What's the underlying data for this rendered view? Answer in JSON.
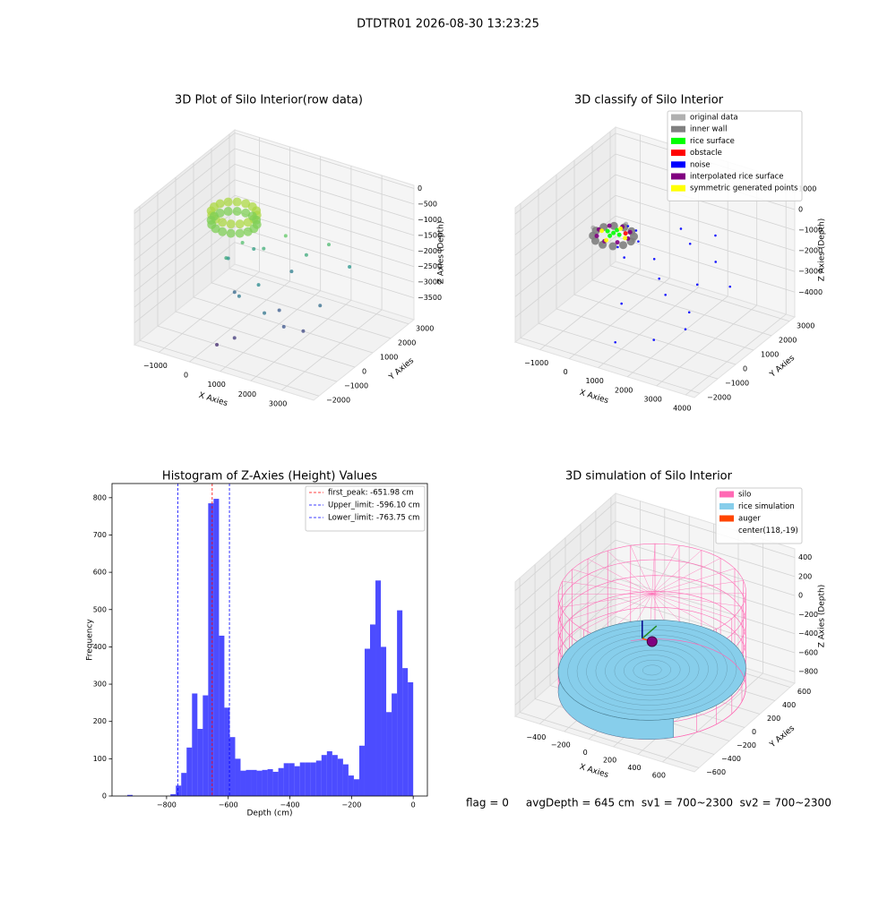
{
  "title": "DTDTR01 2026-08-30 13:23:25",
  "footer": "flag = 0     avgDepth = 645 cm  sv1 = 700~2300  sv2 = 700~2300",
  "chart_data": [
    {
      "type": "scatter3d",
      "title": "3D Plot of Silo Interior(row data)",
      "xlabel": "X Axies",
      "ylabel": "Y Axies",
      "zlabel": "Z Axies (Depth)",
      "colormap": "viridis",
      "xlim": [
        -1800,
        4050
      ],
      "ylim": [
        -2300,
        3300
      ],
      "zlim": [
        -4200,
        100
      ],
      "xticks": [
        {
          "value": -1000,
          "label": "−1000"
        },
        0,
        1000,
        2000,
        3000
      ],
      "yticks": [
        {
          "value": -2000,
          "label": "−2000"
        },
        {
          "value": -1000,
          "label": "−1000"
        },
        0,
        1000,
        2000,
        3000
      ],
      "zticks": [
        0,
        {
          "value": -500,
          "label": "−500"
        },
        {
          "value": -1000,
          "label": "−1000"
        },
        {
          "value": -1500,
          "label": "−1500"
        },
        {
          "value": -2000,
          "label": "−2000"
        },
        {
          "value": -2500,
          "label": "−2500"
        },
        {
          "value": -3000,
          "label": "−3000"
        },
        {
          "value": -3500,
          "label": "−3500"
        }
      ],
      "x": [
        768,
        719,
        578,
        367,
        118,
        -131,
        -342,
        -483,
        -532,
        -483,
        -342,
        -131,
        118,
        367,
        578,
        719,
        768,
        719,
        578,
        367,
        118,
        -131,
        -342,
        -483,
        -532,
        -483,
        -342,
        -131,
        118,
        367,
        578,
        719,
        500,
        900,
        1500,
        2000,
        2500,
        3000,
        1200,
        800,
        300,
        1800,
        2200,
        2600,
        1000,
        600,
        2800,
        1400,
        400,
        -200,
        200,
        1700
      ],
      "y": [
        -19,
        230,
        441,
        582,
        631,
        582,
        441,
        230,
        -19,
        -268,
        -479,
        -620,
        -669,
        -620,
        -479,
        -268,
        -19,
        230,
        441,
        582,
        631,
        582,
        441,
        230,
        -19,
        -268,
        -479,
        -620,
        -669,
        -620,
        -479,
        -268,
        -200,
        300,
        500,
        800,
        1200,
        1500,
        -500,
        -900,
        -300,
        -1200,
        -800,
        -400,
        -1500,
        -1800,
        200,
        1000,
        600,
        200,
        -600,
        -200
      ],
      "z": [
        -450,
        -450,
        -450,
        -450,
        -450,
        -450,
        -450,
        -450,
        -450,
        -450,
        -450,
        -450,
        -450,
        -450,
        -450,
        -450,
        -750,
        -750,
        -750,
        -750,
        -750,
        -750,
        -750,
        -750,
        -750,
        -750,
        -750,
        -750,
        -750,
        -750,
        -750,
        -750,
        -1200,
        -1500,
        -1000,
        -1600,
        -1300,
        -2000,
        -2200,
        -2500,
        -2800,
        -2600,
        -3100,
        -3300,
        -3500,
        -3700,
        -2700,
        -2400,
        -1800,
        -2100,
        -1600,
        -3000
      ]
    },
    {
      "type": "scatter3d",
      "title": "3D classify of Silo Interior",
      "xlabel": "X Axies",
      "ylabel": "Y Axies",
      "zlabel": "Z Axies (Depth)",
      "legend": "upper right",
      "xlim": [
        -1850,
        4300
      ],
      "ylim": [
        -2300,
        3300
      ],
      "zlim": [
        -5200,
        1300
      ],
      "xticks": [
        {
          "value": -1000,
          "label": "−1000"
        },
        0,
        1000,
        2000,
        3000,
        4000
      ],
      "yticks": [
        {
          "value": -2000,
          "label": "−2000"
        },
        {
          "value": -1000,
          "label": "−1000"
        },
        0,
        1000,
        2000,
        3000
      ],
      "zticks": [
        1000,
        0,
        {
          "value": -1000,
          "label": "−1000"
        },
        {
          "value": -2000,
          "label": "−2000"
        },
        {
          "value": -3000,
          "label": "−3000"
        },
        {
          "value": -4000,
          "label": "−4000"
        }
      ],
      "series": [
        {
          "name": "original data",
          "color": "#b0b0b0",
          "x": [
            818,
            118,
            -582,
            118
          ],
          "y": [
            -19,
            681,
            -19,
            -719
          ],
          "z": [
            -700,
            -700,
            -700,
            -700
          ]
        },
        {
          "name": "inner wall",
          "color": "#808080",
          "x": [
            718,
            638,
            418,
            118,
            -182,
            -402,
            -482,
            -402,
            -182,
            118,
            418,
            638
          ],
          "y": [
            -19,
            281,
            501,
            581,
            501,
            281,
            -19,
            -319,
            -539,
            -619,
            -539,
            -319
          ],
          "z": [
            -800,
            -800,
            -800,
            -800,
            -800,
            -800,
            -800,
            -800,
            -800,
            -800,
            -800,
            -800
          ]
        },
        {
          "name": "rice surface",
          "color": "#00ff00",
          "x": [
            118,
            318,
            -82,
            118,
            118
          ],
          "y": [
            -19,
            -19,
            -19,
            181,
            -219
          ],
          "z": [
            -650,
            -650,
            -650,
            -650,
            -650
          ]
        },
        {
          "name": "obstacle",
          "color": "#ff0000",
          "x": [
            400
          ],
          "y": [
            200
          ],
          "z": [
            -700
          ]
        },
        {
          "name": "noise",
          "color": "#0000ff",
          "x": [
            700,
            500,
            300,
            900,
            1500,
            2000,
            2500,
            3000,
            1200,
            1800,
            2200,
            2800,
            3200,
            1000,
            3500,
            2600,
            1400,
            600,
            3800
          ],
          "y": [
            300,
            -400,
            500,
            100,
            1500,
            1200,
            1800,
            1000,
            500,
            -200,
            -500,
            300,
            -800,
            -1000,
            -1500,
            -1800,
            -2000,
            -200,
            500
          ],
          "z": [
            -500,
            -900,
            -600,
            -800,
            -900,
            -1200,
            -1000,
            -1500,
            -1800,
            -2000,
            -2400,
            -2200,
            -2600,
            -3000,
            -2800,
            -3500,
            -4000,
            -1500,
            -2000
          ]
        },
        {
          "name": "interpolated rice surface",
          "color": "#800080",
          "x": [
            618,
            472,
            118,
            -236,
            -382,
            -236,
            118,
            472
          ],
          "y": [
            -19,
            335,
            481,
            335,
            -19,
            -373,
            -519,
            -373
          ],
          "z": [
            -700,
            -700,
            -700,
            -700,
            -700,
            -700,
            -700,
            -700
          ]
        },
        {
          "name": "symmetric generated points",
          "color": "#ffff00",
          "x": [
            518,
            -282,
            118,
            118
          ],
          "y": [
            -19,
            -19,
            381,
            -419
          ],
          "z": [
            -720,
            -720,
            -720,
            -720
          ]
        }
      ]
    },
    {
      "type": "histogram",
      "title": "Histogram of Z-Axies (Height) Values",
      "xlabel": "Depth (cm)",
      "ylabel": "Frequency",
      "color": "#0000ff",
      "alpha": 0.7,
      "legend": "upper right",
      "xlim": [
        -977,
        46
      ],
      "ylim": [
        0,
        838
      ],
      "xticks": [
        {
          "value": -800,
          "label": "−800"
        },
        {
          "value": -600,
          "label": "−600"
        },
        {
          "value": -400,
          "label": "−400"
        },
        {
          "value": -200,
          "label": "−200"
        },
        0
      ],
      "yticks": [
        0,
        100,
        200,
        300,
        400,
        500,
        600,
        700,
        800
      ],
      "bins": [
        -927.5,
        -910,
        -892.5,
        -875,
        -857.5,
        -840,
        -822.5,
        -805,
        -787.5,
        -770,
        -752.5,
        -735,
        -717.5,
        -700,
        -682.5,
        -665,
        -647.5,
        -630,
        -612.5,
        -595,
        -577.5,
        -560,
        -542.5,
        -525,
        -507.5,
        -490,
        -472.5,
        -455,
        -437.5,
        -420,
        -402.5,
        -385,
        -367.5,
        -350,
        -332.5,
        -315,
        -297.5,
        -280,
        -262.5,
        -245,
        -227.5,
        -210,
        -192.5,
        -175,
        -157.5,
        -140,
        -122.5,
        -105,
        -87.5,
        -70,
        -52.5,
        -35,
        -17.5,
        0
      ],
      "counts": [
        3,
        0,
        0,
        0,
        0,
        0,
        0,
        0,
        5,
        28,
        62,
        130,
        275,
        180,
        270,
        785,
        797,
        430,
        237,
        158,
        100,
        68,
        70,
        70,
        68,
        70,
        72,
        65,
        75,
        88,
        88,
        80,
        90,
        90,
        90,
        95,
        110,
        120,
        110,
        100,
        85,
        55,
        45,
        135,
        395,
        460,
        578,
        400,
        225,
        275,
        498,
        343,
        305
      ],
      "lines": [
        {
          "name": "first_peak: -651.98 cm",
          "value": -651.98,
          "color": "#ff0000"
        },
        {
          "name": "Upper_limit: -596.10 cm",
          "value": -596.1,
          "color": "#0000ff"
        },
        {
          "name": "Lower_limit: -763.75 cm",
          "value": -763.75,
          "color": "#0000ff"
        }
      ]
    },
    {
      "type": "surface3d",
      "title": "3D simulation of Silo Interior",
      "xlabel": "X Axies",
      "ylabel": "Y Axies",
      "zlabel": "Z Axies (Depth)",
      "legend": "upper right",
      "xlim": [
        -600,
        860
      ],
      "ylim": [
        -660,
        660
      ],
      "zlim": [
        -920,
        490
      ],
      "xticks": [
        {
          "value": -400,
          "label": "−400"
        },
        {
          "value": -200,
          "label": "−200"
        },
        0,
        200,
        400,
        600
      ],
      "yticks": [
        {
          "value": -600,
          "label": "−600"
        },
        {
          "value": -400,
          "label": "−400"
        },
        {
          "value": -200,
          "label": "−200"
        },
        0,
        200,
        400,
        600
      ],
      "zticks": [
        400,
        200,
        0,
        {
          "value": -200,
          "label": "−200"
        },
        {
          "value": -400,
          "label": "−400"
        },
        {
          "value": -600,
          "label": "−600"
        },
        {
          "value": -800,
          "label": "−800"
        }
      ],
      "silo": {
        "name": "silo",
        "color": "#ff69b4",
        "center": [
          118,
          -19
        ],
        "radius": 650,
        "z": [
          -800,
          200
        ]
      },
      "rice": {
        "name": "rice simulation",
        "color": "#87ceeb",
        "z": -600
      },
      "auger": {
        "name": "auger",
        "color": "#ff4500",
        "marker_color": "#800080",
        "x": 118,
        "y": -19,
        "z": -300
      },
      "center_label": "center(118,-19)"
    }
  ]
}
